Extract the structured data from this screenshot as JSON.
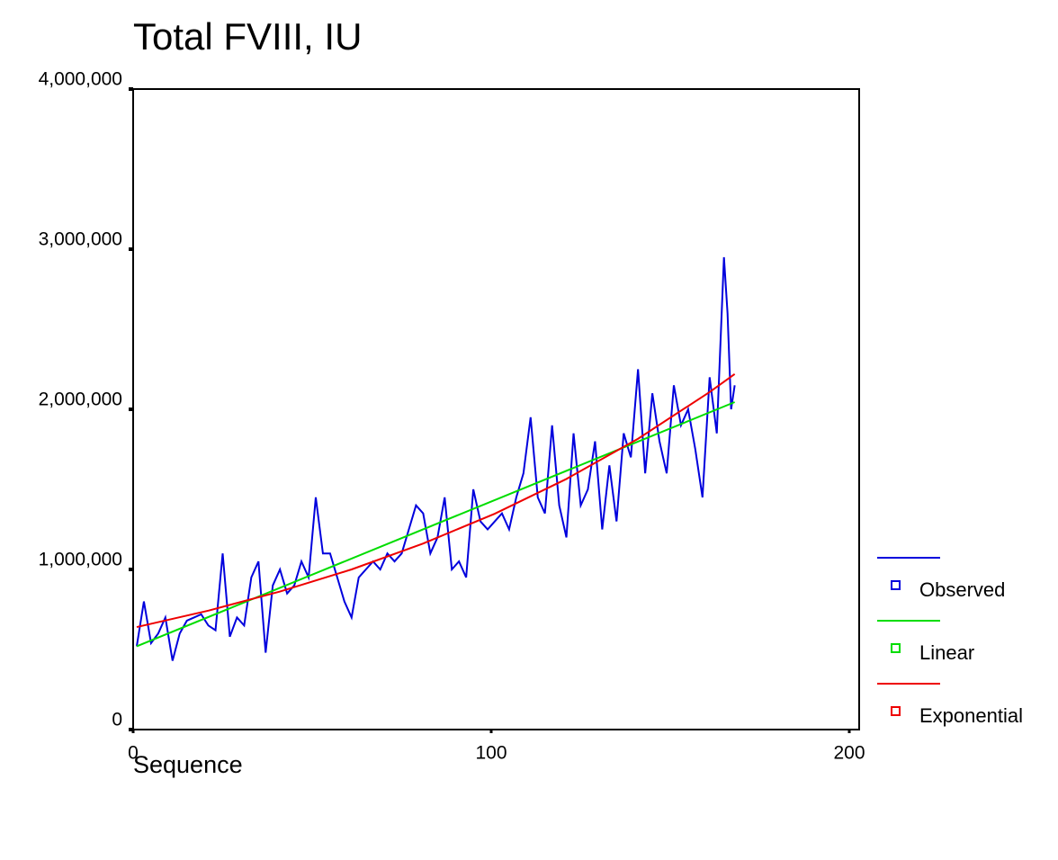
{
  "chart_data": {
    "type": "line",
    "title": "Total FVIII, IU",
    "x_label": "Sequence",
    "xlim": [
      0,
      200
    ],
    "xticks": [
      0,
      100,
      200
    ],
    "ylim": [
      0,
      4000000
    ],
    "yticks": [
      0,
      {
        "value": 1000000,
        "label": "1,000,000"
      },
      {
        "value": 2000000,
        "label": "2,000,000"
      },
      {
        "value": 3000000,
        "label": "3,000,000"
      },
      {
        "value": 4000000,
        "label": "4,000,000"
      }
    ],
    "legend": "right",
    "series": [
      {
        "name": "Observed",
        "color": "#0000dd",
        "x": [
          1,
          3,
          5,
          7,
          9,
          11,
          13,
          15,
          17,
          19,
          21,
          23,
          25,
          27,
          29,
          31,
          33,
          35,
          37,
          39,
          41,
          43,
          45,
          47,
          49,
          51,
          53,
          55,
          57,
          59,
          61,
          63,
          65,
          67,
          69,
          71,
          73,
          75,
          77,
          79,
          81,
          83,
          85,
          87,
          89,
          91,
          93,
          95,
          97,
          99,
          101,
          103,
          105,
          107,
          109,
          111,
          113,
          115,
          117,
          119,
          121,
          123,
          125,
          127,
          129,
          131,
          133,
          135,
          137,
          139,
          141,
          143,
          145,
          147,
          149,
          151,
          153,
          155,
          157,
          159,
          161,
          163,
          165,
          166,
          167,
          168
        ],
        "values": [
          520000,
          800000,
          540000,
          600000,
          700000,
          430000,
          600000,
          680000,
          700000,
          720000,
          650000,
          620000,
          1100000,
          580000,
          700000,
          650000,
          950000,
          1050000,
          480000,
          900000,
          1000000,
          850000,
          900000,
          1050000,
          950000,
          1450000,
          1100000,
          1100000,
          950000,
          800000,
          700000,
          950000,
          1000000,
          1050000,
          1000000,
          1100000,
          1050000,
          1100000,
          1250000,
          1400000,
          1350000,
          1100000,
          1200000,
          1450000,
          1000000,
          1050000,
          950000,
          1500000,
          1300000,
          1250000,
          1300000,
          1350000,
          1250000,
          1450000,
          1600000,
          1950000,
          1450000,
          1350000,
          1900000,
          1400000,
          1200000,
          1850000,
          1400000,
          1500000,
          1800000,
          1250000,
          1650000,
          1300000,
          1850000,
          1700000,
          2250000,
          1600000,
          2100000,
          1800000,
          1600000,
          2150000,
          1900000,
          2000000,
          1750000,
          1450000,
          2200000,
          1850000,
          2950000,
          2600000,
          2000000,
          2150000
        ]
      },
      {
        "name": "Linear",
        "color": "#00dd00",
        "x": [
          1,
          168
        ],
        "values": [
          520000,
          2045000
        ]
      },
      {
        "name": "Exponential",
        "color": "#ee0000",
        "x": [
          1,
          21,
          41,
          61,
          81,
          101,
          121,
          141,
          161,
          168
        ],
        "values": [
          640000,
          742600,
          862000,
          1000000,
          1162000,
          1348000,
          1565000,
          1816000,
          2108000,
          2220000
        ]
      }
    ]
  }
}
